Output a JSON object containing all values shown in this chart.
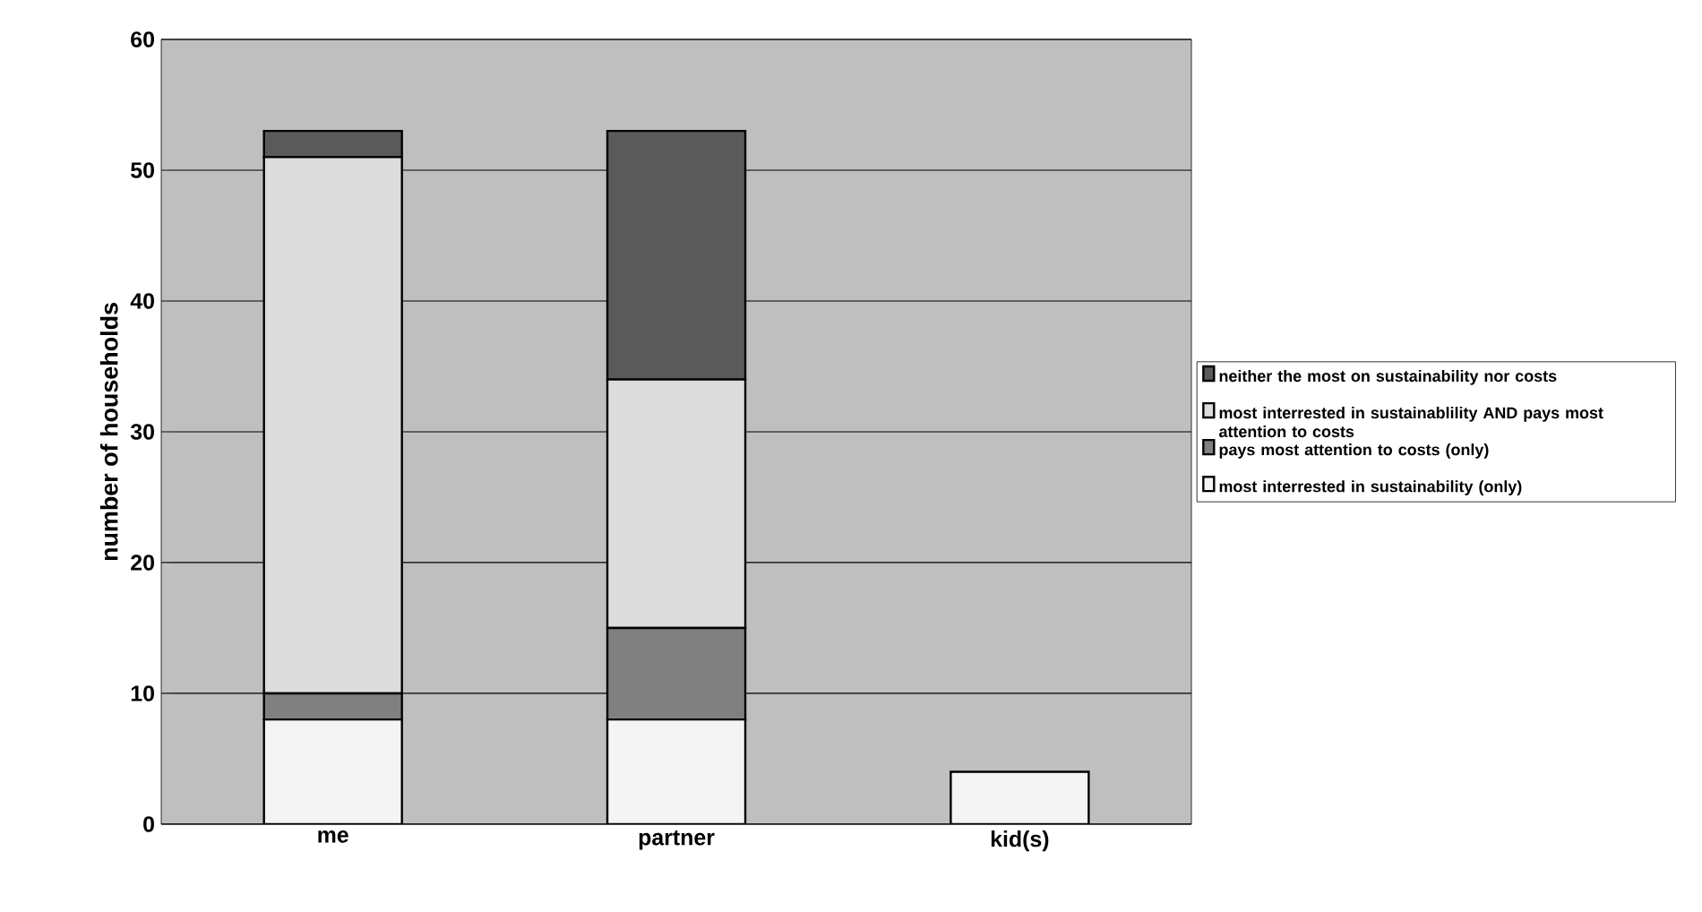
{
  "chart_data": {
    "type": "bar",
    "stacked": true,
    "ylabel": "number of households",
    "categories": [
      "me",
      "partner",
      "kid(s)"
    ],
    "ylim": [
      0,
      60
    ],
    "yticks": [
      0,
      10,
      20,
      30,
      40,
      50,
      60
    ],
    "grid": "y",
    "legend": "right",
    "series": [
      {
        "name": "most interrested in sustainability (only)",
        "color": "#f4f4f4",
        "values": [
          8,
          8,
          4
        ]
      },
      {
        "name": "pays most attention to costs (only)",
        "color": "#808080",
        "values": [
          2,
          7,
          0
        ]
      },
      {
        "name": "most interrested in sustainablility AND pays most attention to costs",
        "color": "#dcdcdc",
        "values": [
          41,
          19,
          0
        ]
      },
      {
        "name": "neither the most on sustainability nor costs",
        "color": "#5a5a5a",
        "values": [
          2,
          19,
          0
        ]
      }
    ]
  }
}
